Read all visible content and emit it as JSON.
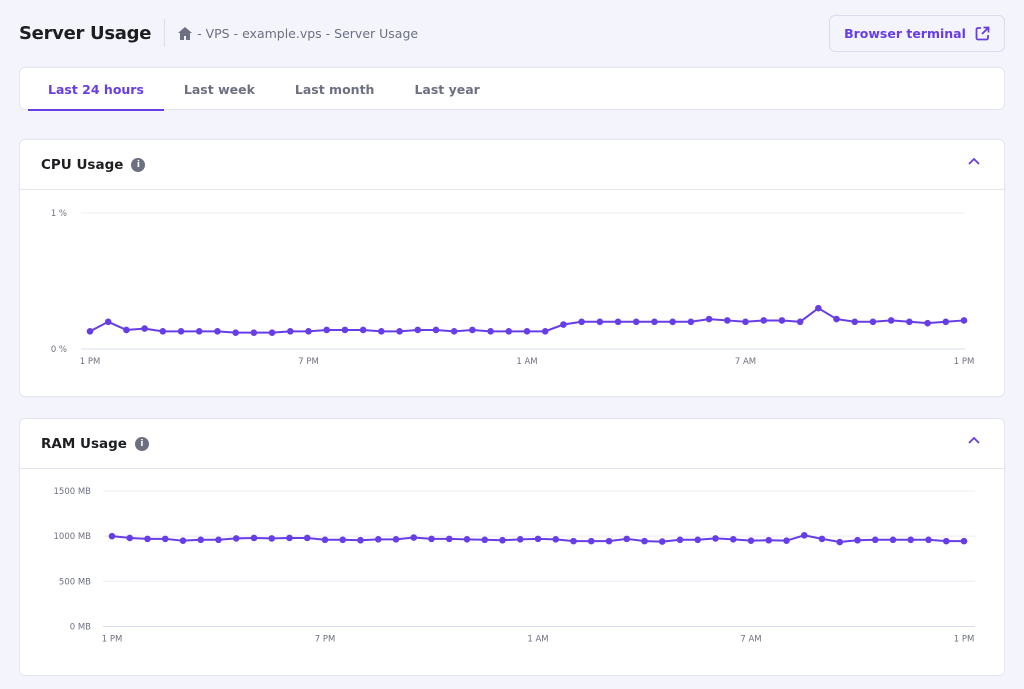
{
  "header": {
    "title": "Server Usage",
    "breadcrumb": "- VPS - example.vps - Server Usage",
    "terminal_button": "Browser terminal"
  },
  "tabs": [
    {
      "label": "Last 24 hours",
      "active": true
    },
    {
      "label": "Last week"
    },
    {
      "label": "Last month"
    },
    {
      "label": "Last year"
    }
  ],
  "colors": {
    "accent": "#673de6",
    "background": "#f4f4fd"
  },
  "cards": {
    "cpu": {
      "title": "CPU Usage"
    },
    "ram": {
      "title": "RAM Usage"
    }
  },
  "chart_data": [
    {
      "type": "line",
      "title": "CPU Usage",
      "ylim": [
        0,
        1
      ],
      "y_ticks": [
        {
          "value": 0,
          "label": "0 %"
        },
        {
          "value": 1,
          "label": "1 %"
        }
      ],
      "x_ticks": [
        {
          "index": 0,
          "label": "1 PM"
        },
        {
          "index": 12,
          "label": "7 PM"
        },
        {
          "index": 24,
          "label": "1 AM"
        },
        {
          "index": 36,
          "label": "7 AM"
        },
        {
          "index": 48,
          "label": "1 PM"
        }
      ],
      "grid": true,
      "color": "#673de6",
      "values": [
        0.13,
        0.2,
        0.14,
        0.15,
        0.13,
        0.13,
        0.13,
        0.13,
        0.12,
        0.12,
        0.12,
        0.13,
        0.13,
        0.14,
        0.14,
        0.14,
        0.13,
        0.13,
        0.14,
        0.14,
        0.13,
        0.14,
        0.13,
        0.13,
        0.13,
        0.13,
        0.18,
        0.2,
        0.2,
        0.2,
        0.2,
        0.2,
        0.2,
        0.2,
        0.22,
        0.21,
        0.2,
        0.21,
        0.21,
        0.2,
        0.3,
        0.22,
        0.2,
        0.2,
        0.21,
        0.2,
        0.19,
        0.2,
        0.21
      ]
    },
    {
      "type": "line",
      "title": "RAM Usage",
      "ylim": [
        0,
        1500
      ],
      "y_ticks": [
        {
          "value": 0,
          "label": "0 MB"
        },
        {
          "value": 500,
          "label": "500 MB"
        },
        {
          "value": 1000,
          "label": "1000 MB"
        },
        {
          "value": 1500,
          "label": "1500 MB"
        }
      ],
      "x_ticks": [
        {
          "index": 0,
          "label": "1 PM"
        },
        {
          "index": 12,
          "label": "7 PM"
        },
        {
          "index": 24,
          "label": "1 AM"
        },
        {
          "index": 36,
          "label": "7 AM"
        },
        {
          "index": 48,
          "label": "1 PM"
        }
      ],
      "grid": true,
      "color": "#673de6",
      "values": [
        1000,
        980,
        970,
        970,
        950,
        960,
        960,
        975,
        980,
        975,
        980,
        980,
        960,
        960,
        955,
        965,
        965,
        985,
        970,
        970,
        965,
        960,
        955,
        965,
        970,
        965,
        945,
        945,
        945,
        970,
        945,
        940,
        960,
        960,
        975,
        965,
        950,
        955,
        950,
        1010,
        970,
        935,
        955,
        960,
        960,
        960,
        960,
        945,
        945
      ]
    }
  ]
}
